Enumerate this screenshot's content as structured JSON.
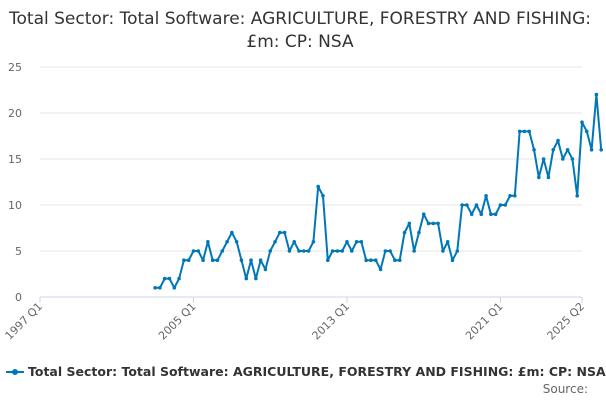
{
  "chart_data": {
    "type": "line",
    "title": "Total Sector: Total Software: AGRICULTURE, FORESTRY AND FISHING: £m: CP: NSA",
    "xlabel": "",
    "ylabel": "",
    "ylim": [
      0,
      25
    ],
    "yticks": [
      "0",
      "5",
      "10",
      "15",
      "20",
      "25"
    ],
    "xtick_labels": [
      "1997 Q1",
      "2005 Q1",
      "2013 Q1",
      "2021 Q1",
      "2025 Q2"
    ],
    "grid": true,
    "legend_position": "bottom-left",
    "line_color": "#0077b6",
    "series": [
      {
        "name": "Total Sector: Total Software: AGRICULTURE, FORESTRY AND FISHING: £m: CP: NSA",
        "start": "2003 Q1",
        "values": [
          1,
          1,
          2,
          2,
          1,
          2,
          4,
          4,
          5,
          5,
          4,
          6,
          4,
          4,
          5,
          6,
          7,
          6,
          4,
          2,
          4,
          2,
          4,
          3,
          5,
          6,
          7,
          7,
          5,
          6,
          5,
          5,
          5,
          6,
          12,
          11,
          4,
          5,
          5,
          5,
          6,
          5,
          6,
          6,
          4,
          4,
          4,
          3,
          5,
          5,
          4,
          4,
          7,
          8,
          5,
          7,
          9,
          8,
          8,
          8,
          5,
          6,
          4,
          5,
          10,
          10,
          9,
          10,
          9,
          11,
          9,
          9,
          10,
          10,
          11,
          11,
          18,
          18,
          18,
          16,
          13,
          15,
          13,
          16,
          17,
          15,
          16,
          15,
          11,
          19,
          18,
          16,
          22,
          16
        ]
      }
    ]
  },
  "source_label": "Source:"
}
